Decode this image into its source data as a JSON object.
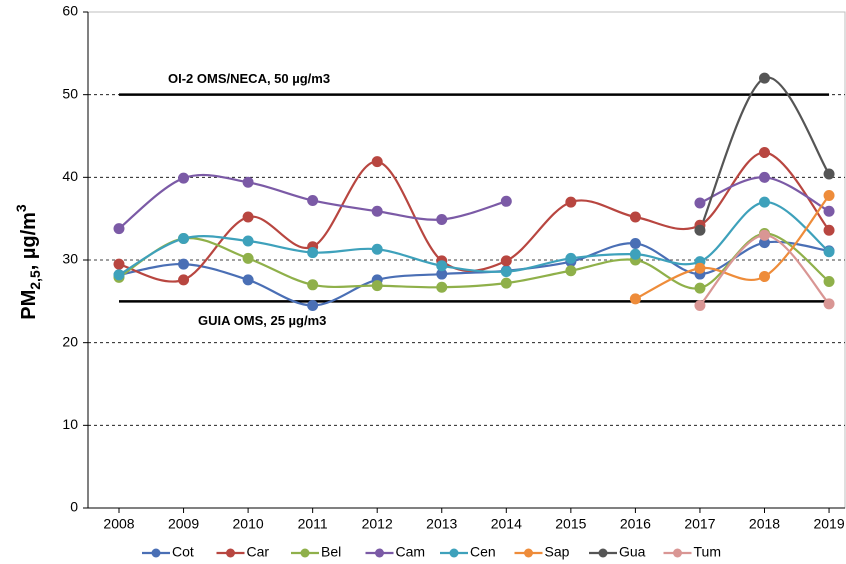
{
  "chart_data": {
    "type": "line",
    "categories": [
      "2008",
      "2009",
      "2010",
      "2011",
      "2012",
      "2013",
      "2014",
      "2015",
      "2016",
      "2017",
      "2018",
      "2019"
    ],
    "series": [
      {
        "name": "Cot",
        "color": "#4a6fb5",
        "values": [
          28.2,
          29.5,
          27.6,
          24.5,
          27.6,
          28.3,
          28.7,
          29.8,
          32.0,
          28.3,
          32.1,
          31.1
        ]
      },
      {
        "name": "Car",
        "color": "#b84640",
        "values": [
          29.5,
          27.6,
          35.2,
          31.6,
          41.9,
          29.9,
          29.9,
          37.0,
          35.2,
          34.2,
          43.0,
          33.6
        ]
      },
      {
        "name": "Bel",
        "color": "#8fb04a",
        "values": [
          27.9,
          32.6,
          30.2,
          27.0,
          26.9,
          26.7,
          27.2,
          28.7,
          30.0,
          26.6,
          33.2,
          27.4
        ]
      },
      {
        "name": "Cam",
        "color": "#7b5aa6",
        "values": [
          33.8,
          39.9,
          39.4,
          37.2,
          35.9,
          34.9,
          37.1,
          null,
          null,
          36.9,
          40.0,
          35.9
        ]
      },
      {
        "name": "Cen",
        "color": "#3ea1bb",
        "values": [
          28.2,
          32.6,
          32.3,
          30.9,
          31.3,
          29.3,
          28.6,
          30.2,
          30.7,
          29.8,
          37.0,
          31.0
        ]
      },
      {
        "name": "Sap",
        "color": "#ee8c3a",
        "values": [
          null,
          null,
          null,
          null,
          null,
          null,
          null,
          null,
          25.3,
          29.0,
          28.0,
          37.8
        ]
      },
      {
        "name": "Gua",
        "color": "#555555",
        "values": [
          null,
          null,
          null,
          null,
          null,
          null,
          null,
          null,
          null,
          33.6,
          52.0,
          40.4
        ]
      },
      {
        "name": "Tum",
        "color": "#d99694",
        "values": [
          null,
          null,
          null,
          null,
          null,
          null,
          null,
          null,
          null,
          24.5,
          33.0,
          24.7
        ]
      }
    ],
    "reference_lines": [
      {
        "value": 50,
        "label": "OI-2 OMS/NECA, 50 µg/m3"
      },
      {
        "value": 25,
        "label": "GUIA OMS, 25 µg/m3"
      }
    ],
    "y_label": {
      "main": "PM",
      "sub": "2,5",
      "rest": ", µg/m",
      "sup": "3"
    },
    "ylim": [
      0,
      60
    ],
    "yticks": [
      0,
      10,
      20,
      30,
      40,
      50,
      60
    ],
    "grid": true,
    "legend": "bottom"
  }
}
